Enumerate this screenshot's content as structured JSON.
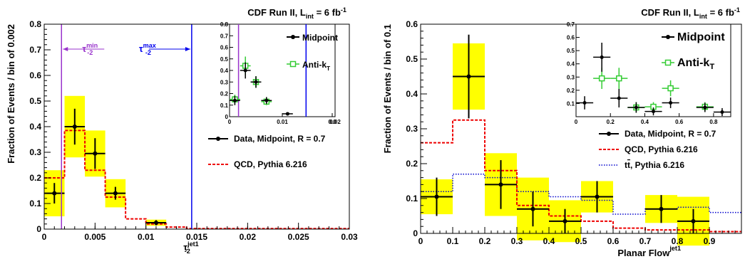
{
  "chart_data": [
    {
      "type": "bar",
      "title": "CDF Run II, L",
      "title_sub": "int",
      "title_tail": " = 6 fb",
      "title_sup": "-1",
      "xlabel": "τ",
      "xlabel_sub": "-2",
      "xlabel_sup": "jet1",
      "ylabel": "Fraction of Events / bin of 0.002",
      "xlim": [
        0,
        0.03
      ],
      "ylim": [
        0,
        0.8
      ],
      "xticks": [
        "0",
        "0.005",
        "0.01",
        "0.015",
        "0.02",
        "0.025",
        "0.03"
      ],
      "yticks": [
        "0",
        "0.1",
        "0.2",
        "0.3",
        "0.4",
        "0.5",
        "0.6",
        "0.7",
        "0.8"
      ],
      "annotations": {
        "tau_min": {
          "label": "τ",
          "sub": "-2",
          "sup": "min",
          "x": 0.0017,
          "color": "#9933cc"
        },
        "tau_max": {
          "label": "τ",
          "sub": "-2",
          "sup": "max",
          "x": 0.0145,
          "color": "#0000ee"
        }
      },
      "data": {
        "name": "Data, Midpoint, R = 0.7",
        "x": [
          0.001,
          0.003,
          0.005,
          0.007,
          0.011
        ],
        "y": [
          0.14,
          0.4,
          0.295,
          0.14,
          0.025
        ],
        "err": [
          0.04,
          0.07,
          0.06,
          0.025,
          0.01
        ],
        "syst": [
          0.09,
          0.12,
          0.09,
          0.055,
          0.012
        ]
      },
      "qcd": {
        "name": "QCD, Pythia 6.216",
        "edges": [
          0,
          0.002,
          0.004,
          0.006,
          0.008,
          0.01,
          0.012,
          0.014,
          0.03
        ],
        "values": [
          0.2,
          0.385,
          0.23,
          0.125,
          0.04,
          0.02,
          0.008,
          0.002
        ]
      },
      "inset": {
        "xlim": [
          0,
          0.02
        ],
        "ylim": [
          0,
          0.8
        ],
        "xticks": [
          "0",
          "0.01",
          "0.02",
          "0.0"
        ],
        "yticks": [
          "0",
          "0.1",
          "0.2",
          "0.3",
          "0.4",
          "0.5",
          "0.6",
          "0.7",
          "0.8"
        ],
        "legend": [
          "Midpoint",
          "Anti-k",
          "T"
        ],
        "midpoint": {
          "x": [
            0.001,
            0.003,
            0.005,
            0.007,
            0.011
          ],
          "y": [
            0.14,
            0.4,
            0.3,
            0.14,
            0.025
          ],
          "err": [
            0.04,
            0.07,
            0.05,
            0.03,
            0.01
          ]
        },
        "antikt": {
          "x": [
            0.001,
            0.003,
            0.005,
            0.007
          ],
          "y": [
            0.15,
            0.44,
            0.3,
            0.13
          ],
          "err": [
            0.04,
            0.08,
            0.05,
            0.03
          ]
        }
      }
    },
    {
      "type": "bar",
      "title": "CDF Run II, L",
      "title_sub": "int",
      "title_tail": " = 6 fb",
      "title_sup": "-1",
      "xlabel": "Planar Flow",
      "xlabel_sup": "jet1",
      "ylabel": "Fraction of Events / bin of 0.1",
      "xlim": [
        0,
        1
      ],
      "ylim": [
        0,
        0.6
      ],
      "xticks": [
        "0",
        "0.1",
        "0.2",
        "0.3",
        "0.4",
        "0.5",
        "0.6",
        "0.7",
        "0.8",
        "0.9"
      ],
      "yticks": [
        "0",
        "0.1",
        "0.2",
        "0.3",
        "0.4",
        "0.5",
        "0.6"
      ],
      "data": {
        "name": "Data, Midpoint, R = 0.7",
        "x": [
          0.05,
          0.15,
          0.25,
          0.35,
          0.45,
          0.55,
          0.75,
          0.85
        ],
        "y": [
          0.105,
          0.45,
          0.14,
          0.07,
          0.035,
          0.105,
          0.07,
          0.035
        ],
        "err": [
          0.055,
          0.12,
          0.07,
          0.05,
          0.035,
          0.045,
          0.04,
          0.035
        ],
        "syst": [
          0.05,
          0.095,
          0.09,
          0.09,
          0.06,
          0.045,
          0.04,
          0.07
        ]
      },
      "qcd": {
        "name": "QCD, Pythia 6.216",
        "edges": [
          0,
          0.1,
          0.2,
          0.3,
          0.4,
          0.5,
          0.6,
          0.7,
          0.8,
          0.9,
          1.0
        ],
        "values": [
          0.26,
          0.325,
          0.18,
          0.08,
          0.05,
          0.035,
          0.015,
          0.01,
          0.01,
          0.005
        ]
      },
      "ttbar": {
        "name": "t",
        "name_tail": ", Pythia 6.216",
        "edges": [
          0,
          0.1,
          0.2,
          0.3,
          0.4,
          0.5,
          0.6,
          0.7,
          0.8,
          0.9,
          1.0
        ],
        "values": [
          0.12,
          0.17,
          0.16,
          0.12,
          0.105,
          0.095,
          0.055,
          0.07,
          0.075,
          0.06
        ]
      },
      "inset": {
        "xlim": [
          0,
          0.9
        ],
        "ylim": [
          0,
          0.7
        ],
        "xticks": [
          "0",
          "0.2",
          "0.4",
          "0.6",
          "0.8"
        ],
        "yticks": [
          "0.1",
          "0.2",
          "0.3",
          "0.4",
          "0.5",
          "0.6",
          "0.7"
        ],
        "legend": [
          "Midpoint",
          "Anti-k",
          "T"
        ],
        "midpoint": {
          "x": [
            0.05,
            0.15,
            0.25,
            0.35,
            0.45,
            0.55,
            0.75,
            0.85
          ],
          "y": [
            0.105,
            0.45,
            0.14,
            0.07,
            0.04,
            0.105,
            0.07,
            0.035
          ],
          "err": [
            0.05,
            0.11,
            0.07,
            0.04,
            0.03,
            0.04,
            0.035,
            0.03
          ]
        },
        "antikt": {
          "x": [
            0.15,
            0.25,
            0.35,
            0.45,
            0.55,
            0.75
          ],
          "y": [
            0.29,
            0.29,
            0.07,
            0.075,
            0.215,
            0.075
          ],
          "err": [
            0.08,
            0.08,
            0.04,
            0.035,
            0.06,
            0.035
          ]
        }
      }
    }
  ]
}
